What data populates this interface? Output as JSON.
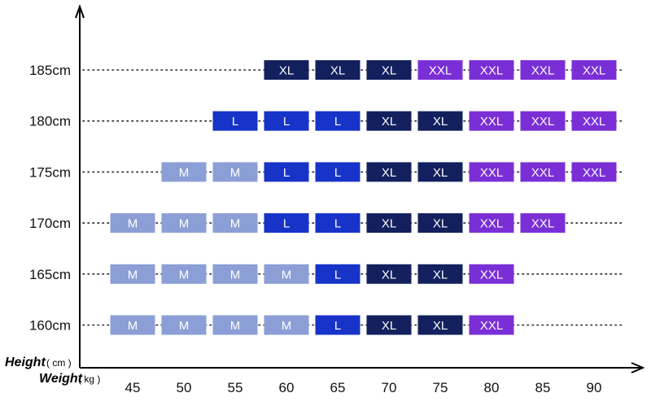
{
  "chart_data": {
    "type": "table",
    "title": "",
    "ylabel": "Height",
    "ylabel_unit": "( cm )",
    "xlabel": "Weight",
    "xlabel_unit": "( kg )",
    "x_ticks": [
      "45",
      "50",
      "55",
      "60",
      "65",
      "70",
      "75",
      "80",
      "85",
      "90"
    ],
    "y_ticks": [
      "185cm",
      "180cm",
      "175cm",
      "170cm",
      "165cm",
      "160cm"
    ],
    "size_colors": {
      "M": "#8b9fd6",
      "L": "#1733c8",
      "XL": "#13205e",
      "XXL": "#7a2fd6"
    },
    "rows": [
      {
        "height": "185cm",
        "cells": [
          "",
          "",
          "",
          "XL",
          "XL",
          "XL",
          "XXL",
          "XXL",
          "XXL",
          "XXL"
        ]
      },
      {
        "height": "180cm",
        "cells": [
          "",
          "",
          "L",
          "L",
          "L",
          "XL",
          "XL",
          "XXL",
          "XXL",
          "XXL"
        ]
      },
      {
        "height": "175cm",
        "cells": [
          "",
          "M",
          "M",
          "L",
          "L",
          "XL",
          "XL",
          "XXL",
          "XXL",
          "XXL"
        ]
      },
      {
        "height": "170cm",
        "cells": [
          "M",
          "M",
          "M",
          "L",
          "L",
          "XL",
          "XL",
          "XXL",
          "XXL",
          ""
        ]
      },
      {
        "height": "165cm",
        "cells": [
          "M",
          "M",
          "M",
          "M",
          "L",
          "XL",
          "XL",
          "XXL",
          "",
          ""
        ]
      },
      {
        "height": "160cm",
        "cells": [
          "M",
          "M",
          "M",
          "M",
          "L",
          "XL",
          "XL",
          "XXL",
          "",
          ""
        ]
      }
    ],
    "cell_overrides": {
      "180cm|45": "",
      "175cm|45": ""
    },
    "grid": false,
    "legend": "none"
  }
}
